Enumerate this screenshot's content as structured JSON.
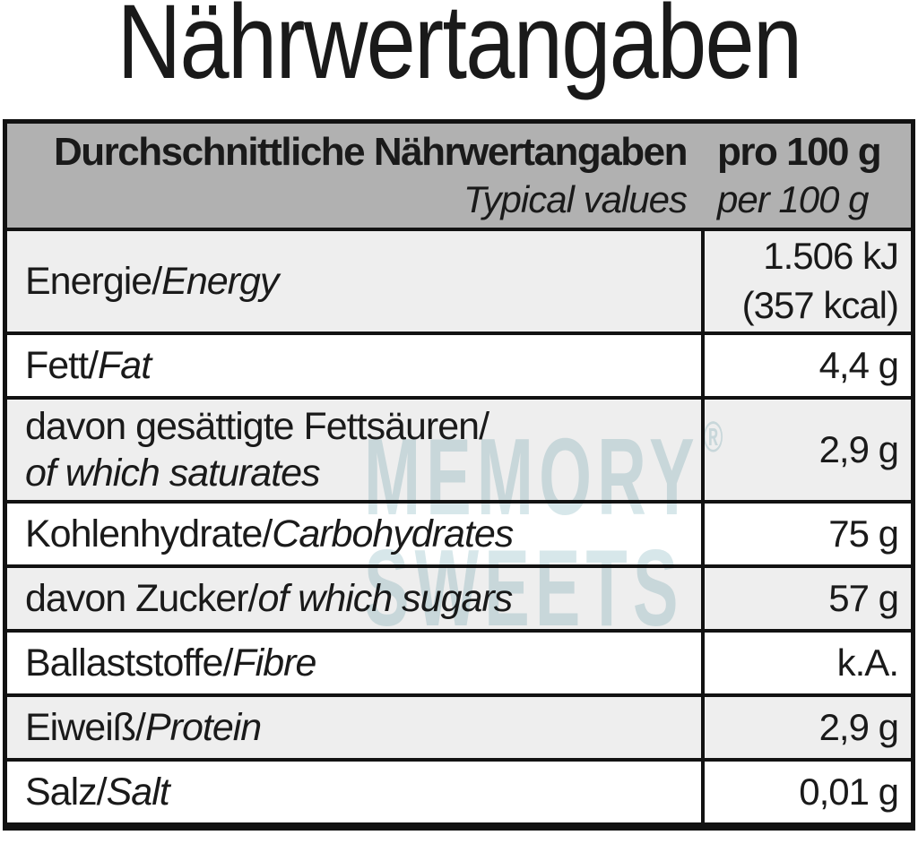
{
  "page": {
    "title": "Nährwertangaben"
  },
  "table": {
    "header": {
      "col1_line1": "Durchschnittliche Nährwertangaben",
      "col1_line2": "Typical values",
      "col2_line1": "pro 100 g",
      "col2_line2": "per 100 g"
    },
    "rows": [
      {
        "label_de": "Energie/",
        "label_en": "Energy",
        "value_lines": [
          "1.506 kJ",
          "(357 kcal)"
        ],
        "shaded": true
      },
      {
        "label_de": "Fett/",
        "label_en": "Fat",
        "value_lines": [
          "4,4 g"
        ],
        "shaded": false
      },
      {
        "label_de": "davon gesättigte Fettsäuren/",
        "label_en": "of which saturates",
        "value_lines": [
          "2,9 g"
        ],
        "shaded": true
      },
      {
        "label_de": "Kohlenhydrate/",
        "label_en": "Carbohydrates",
        "value_lines": [
          "75 g"
        ],
        "shaded": false
      },
      {
        "label_de": "davon Zucker/",
        "label_en": "of which sugars",
        "value_lines": [
          "57 g"
        ],
        "shaded": true
      },
      {
        "label_de": "Ballaststoffe/",
        "label_en": "Fibre",
        "value_lines": [
          "k.A."
        ],
        "shaded": false
      },
      {
        "label_de": "Eiweiß/",
        "label_en": "Protein",
        "value_lines": [
          "2,9 g"
        ],
        "shaded": true
      },
      {
        "label_de": "Salz/",
        "label_en": "Salt",
        "value_lines": [
          "0,01 g"
        ],
        "shaded": false
      }
    ]
  },
  "watermark": {
    "line1": "MEMORY",
    "reg": "®",
    "line2": "SWEETS"
  },
  "colors": {
    "header_bg": "#b1b1b1",
    "row_shaded_bg": "#eeeeee",
    "row_plain_bg": "#ffffff",
    "border_color": "#121212",
    "text_color": "#1a1a1a",
    "watermark_color": "#d7e7ea",
    "page_bg": "#ffffff"
  }
}
